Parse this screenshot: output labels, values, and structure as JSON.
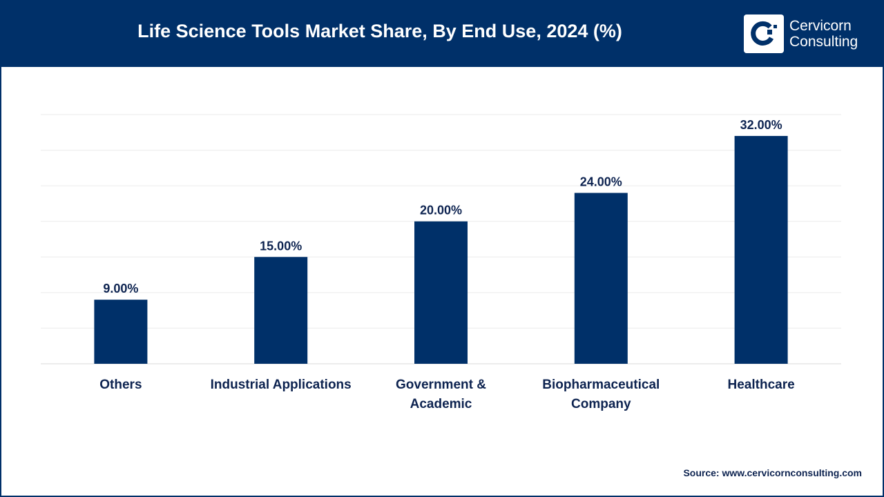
{
  "header": {
    "title": "Life Science Tools Market Share, By End Use, 2024 (%)",
    "logo_line1": "Cervicorn",
    "logo_line2": "Consulting"
  },
  "source": "Source: www.cervicornconsulting.com",
  "colors": {
    "bar": "#003069",
    "header": "#003069",
    "label": "#0d2350"
  },
  "chart_data": {
    "type": "bar",
    "title": "Life Science Tools Market Share, By End Use, 2024 (%)",
    "categories": [
      "Others",
      "Industrial Applications",
      "Government & Academic",
      "Biopharmaceutical Company",
      "Healthcare"
    ],
    "category_lines": [
      [
        "Others"
      ],
      [
        "Industrial Applications"
      ],
      [
        "Government &",
        "Academic"
      ],
      [
        "Biopharmaceutical",
        "Company"
      ],
      [
        "Healthcare"
      ]
    ],
    "values": [
      9,
      15,
      20,
      24,
      32
    ],
    "data_labels": [
      "9.00%",
      "15.00%",
      "20.00%",
      "24.00%",
      "32.00%"
    ],
    "ylim": [
      0,
      35
    ],
    "grid": true,
    "xlabel": "",
    "ylabel": ""
  }
}
